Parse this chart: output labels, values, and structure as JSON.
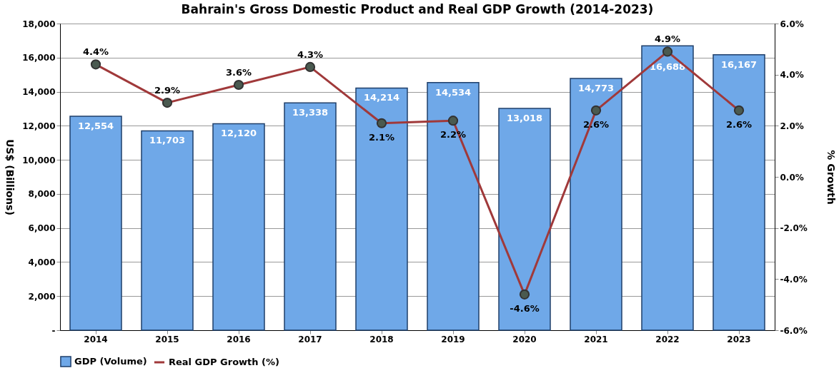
{
  "chart_data": {
    "type": "bar",
    "title": "Bahrain's Gross Domestic Product and Real GDP Growth (2014-2023)",
    "categories": [
      "2014",
      "2015",
      "2016",
      "2017",
      "2018",
      "2019",
      "2020",
      "2021",
      "2022",
      "2023"
    ],
    "series": [
      {
        "name": "GDP (Volume)",
        "color": "#6fa8e8",
        "values": [
          12554,
          11703,
          12120,
          13338,
          14214,
          14534,
          13018,
          14773,
          16688,
          16167
        ],
        "value_labels": [
          "12,554",
          "11,703",
          "12,120",
          "13,338",
          "14,214",
          "14,534",
          "13,018",
          "14,773",
          "16,688",
          "16,167"
        ]
      },
      {
        "name": "Real GDP Growth (%)",
        "type": "line",
        "axis": "y2",
        "color": "#a0393a",
        "marker": "circle",
        "values": [
          4.4,
          2.9,
          3.6,
          4.3,
          2.1,
          2.2,
          -4.6,
          2.6,
          4.9,
          2.6
        ],
        "value_labels": [
          "4.4%",
          "2.9%",
          "3.6%",
          "4.3%",
          "2.1%",
          "2.2%",
          "-4.6%",
          "2.6%",
          "4.9%",
          "2.6%"
        ]
      }
    ],
    "ylabel": "US$ (Billions)",
    "y2label": "% Growth",
    "ylim": [
      0,
      18000
    ],
    "yticks": [
      {
        "value": 0,
        "label": "-"
      },
      {
        "value": 2000,
        "label": "2,000"
      },
      {
        "value": 4000,
        "label": "4,000"
      },
      {
        "value": 6000,
        "label": "6,000"
      },
      {
        "value": 8000,
        "label": "8,000"
      },
      {
        "value": 10000,
        "label": "10,000"
      },
      {
        "value": 12000,
        "label": "12,000"
      },
      {
        "value": 14000,
        "label": "14,000"
      },
      {
        "value": 16000,
        "label": "16,000"
      },
      {
        "value": 18000,
        "label": "18,000"
      }
    ],
    "y2lim": [
      -6,
      6
    ],
    "y2ticks": [
      {
        "value": -6,
        "label": "-6.0%"
      },
      {
        "value": -4,
        "label": "-4.0%"
      },
      {
        "value": -2,
        "label": "-2.0%"
      },
      {
        "value": 0,
        "label": "0.0%"
      },
      {
        "value": 2,
        "label": "2.0%"
      },
      {
        "value": 4,
        "label": "4.0%"
      },
      {
        "value": 6,
        "label": "6.0%"
      }
    ],
    "grid": "y",
    "legend": "bottom"
  }
}
